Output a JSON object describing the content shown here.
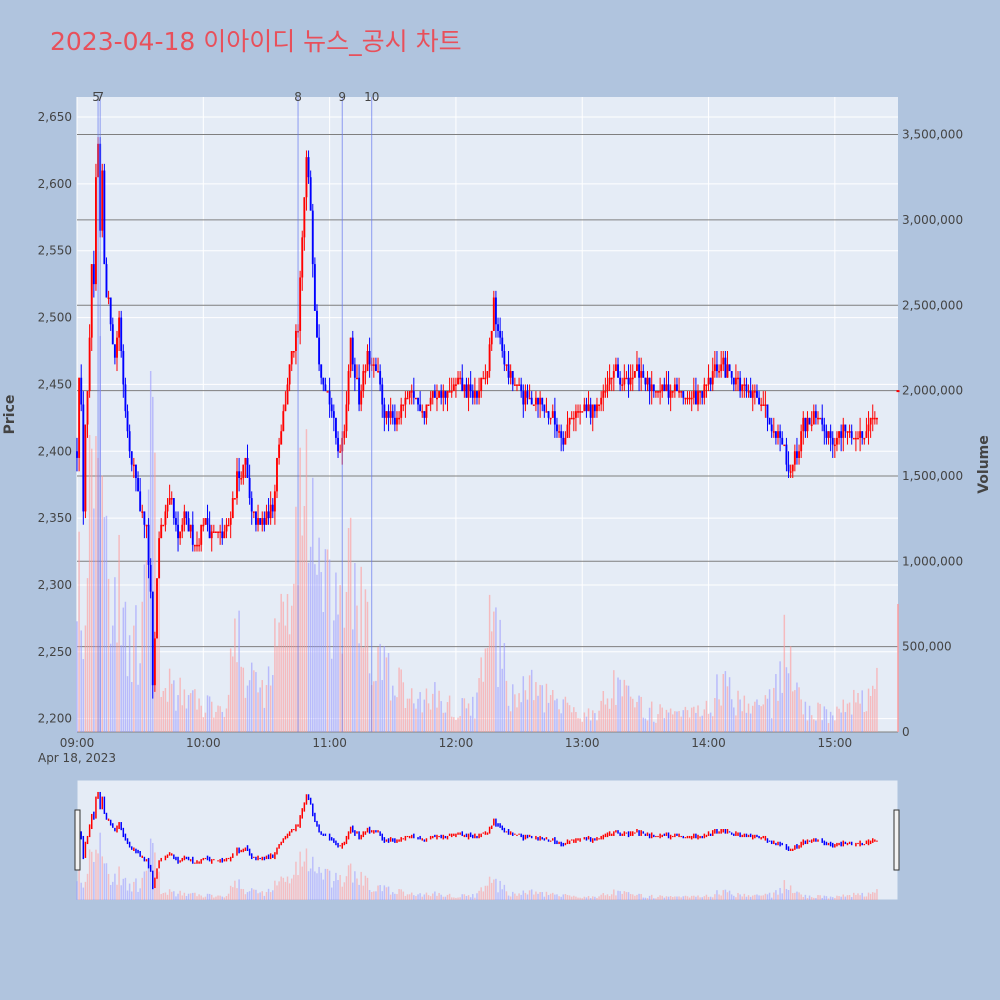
{
  "title": "2023-04-18 이아이디 뉴스_공시 차트",
  "colors": {
    "up": "#ff0000",
    "down": "#0000ff",
    "plot_bg": "#e5ecf6",
    "page_bg": "#b0c4de",
    "title": "#e8505b"
  },
  "chart_data": {
    "type": "candlestick",
    "title": "2023-04-18 이아이디 뉴스_공시 차트",
    "date_label": "Apr 18, 2023",
    "y_label": "Price",
    "y2_label": "Volume",
    "x_ticks": [
      "09:00",
      "10:00",
      "11:00",
      "12:00",
      "13:00",
      "14:00",
      "15:00"
    ],
    "x_range": [
      "09:00",
      "15:30"
    ],
    "y_ticks": [
      2200,
      2250,
      2300,
      2350,
      2400,
      2450,
      2500,
      2550,
      2600,
      2650
    ],
    "y_tick_labels": [
      "2,200",
      "2,250",
      "2,300",
      "2,350",
      "2,400",
      "2,450",
      "2,500",
      "2,550",
      "2,600",
      "2,650"
    ],
    "y_range": [
      2190,
      2665
    ],
    "y2_ticks": [
      0,
      500000,
      1000000,
      1500000,
      2000000,
      2500000,
      3000000,
      3500000
    ],
    "y2_tick_labels": [
      "0",
      "500,000",
      "1,000,000",
      "1,500,000",
      "2,000,000",
      "2,500,000",
      "3,000,000",
      "3,500,000"
    ],
    "y2_range": [
      0,
      3720000
    ],
    "news_markers": [
      {
        "label": "5",
        "time": "09:10"
      },
      {
        "label": "7",
        "time": "09:11"
      },
      {
        "label": "8",
        "time": "10:45"
      },
      {
        "label": "9",
        "time": "11:06"
      },
      {
        "label": "10",
        "time": "11:20"
      }
    ],
    "price_path": [
      [
        "09:00",
        2400
      ],
      [
        "09:01",
        2460
      ],
      [
        "09:02",
        2430
      ],
      [
        "09:03",
        2360
      ],
      [
        "09:04",
        2420
      ],
      [
        "09:05",
        2440
      ],
      [
        "09:06",
        2480
      ],
      [
        "09:07",
        2540
      ],
      [
        "09:08",
        2520
      ],
      [
        "09:09",
        2600
      ],
      [
        "09:10",
        2630
      ],
      [
        "09:11",
        2560
      ],
      [
        "09:12",
        2610
      ],
      [
        "09:13",
        2540
      ],
      [
        "09:14",
        2520
      ],
      [
        "09:16",
        2500
      ],
      [
        "09:18",
        2470
      ],
      [
        "09:20",
        2500
      ],
      [
        "09:22",
        2450
      ],
      [
        "09:24",
        2420
      ],
      [
        "09:26",
        2390
      ],
      [
        "09:28",
        2380
      ],
      [
        "09:30",
        2360
      ],
      [
        "09:33",
        2340
      ],
      [
        "09:35",
        2290
      ],
      [
        "09:36",
        2220
      ],
      [
        "09:37",
        2260
      ],
      [
        "09:39",
        2340
      ],
      [
        "09:42",
        2350
      ],
      [
        "09:45",
        2360
      ],
      [
        "09:48",
        2330
      ],
      [
        "09:51",
        2350
      ],
      [
        "09:54",
        2340
      ],
      [
        "09:57",
        2330
      ],
      [
        "10:00",
        2350
      ],
      [
        "10:04",
        2340
      ],
      [
        "10:08",
        2335
      ],
      [
        "10:12",
        2345
      ],
      [
        "10:16",
        2380
      ],
      [
        "10:20",
        2390
      ],
      [
        "10:23",
        2350
      ],
      [
        "10:27",
        2345
      ],
      [
        "10:30",
        2350
      ],
      [
        "10:33",
        2360
      ],
      [
        "10:36",
        2410
      ],
      [
        "10:39",
        2440
      ],
      [
        "10:42",
        2470
      ],
      [
        "10:45",
        2490
      ],
      [
        "10:47",
        2560
      ],
      [
        "10:49",
        2620
      ],
      [
        "10:51",
        2580
      ],
      [
        "10:53",
        2510
      ],
      [
        "10:55",
        2470
      ],
      [
        "10:58",
        2450
      ],
      [
        "11:01",
        2430
      ],
      [
        "11:04",
        2400
      ],
      [
        "11:07",
        2420
      ],
      [
        "11:10",
        2480
      ],
      [
        "11:14",
        2440
      ],
      [
        "11:18",
        2470
      ],
      [
        "11:22",
        2460
      ],
      [
        "11:26",
        2430
      ],
      [
        "11:30",
        2420
      ],
      [
        "11:35",
        2435
      ],
      [
        "11:40",
        2440
      ],
      [
        "11:45",
        2430
      ],
      [
        "11:50",
        2445
      ],
      [
        "11:55",
        2440
      ],
      [
        "12:00",
        2450
      ],
      [
        "12:05",
        2445
      ],
      [
        "12:10",
        2440
      ],
      [
        "12:15",
        2460
      ],
      [
        "12:18",
        2510
      ],
      [
        "12:20",
        2490
      ],
      [
        "12:24",
        2460
      ],
      [
        "12:28",
        2450
      ],
      [
        "12:33",
        2440
      ],
      [
        "12:38",
        2440
      ],
      [
        "12:43",
        2430
      ],
      [
        "12:48",
        2420
      ],
      [
        "12:52",
        2410
      ],
      [
        "12:55",
        2430
      ],
      [
        "13:00",
        2430
      ],
      [
        "13:05",
        2430
      ],
      [
        "13:10",
        2440
      ],
      [
        "13:15",
        2460
      ],
      [
        "13:20",
        2450
      ],
      [
        "13:25",
        2460
      ],
      [
        "13:30",
        2450
      ],
      [
        "13:35",
        2450
      ],
      [
        "13:40",
        2445
      ],
      [
        "13:45",
        2445
      ],
      [
        "13:50",
        2440
      ],
      [
        "13:55",
        2440
      ],
      [
        "14:00",
        2450
      ],
      [
        "14:05",
        2465
      ],
      [
        "14:10",
        2460
      ],
      [
        "14:15",
        2450
      ],
      [
        "14:20",
        2440
      ],
      [
        "14:25",
        2440
      ],
      [
        "14:30",
        2420
      ],
      [
        "14:35",
        2410
      ],
      [
        "14:38",
        2385
      ],
      [
        "14:42",
        2400
      ],
      [
        "14:45",
        2420
      ],
      [
        "14:50",
        2425
      ],
      [
        "14:55",
        2415
      ],
      [
        "15:00",
        2410
      ],
      [
        "15:05",
        2415
      ],
      [
        "15:10",
        2410
      ],
      [
        "15:15",
        2415
      ],
      [
        "15:18",
        2430
      ],
      [
        "15:20",
        2420
      ]
    ],
    "volume_path": [
      [
        "09:00",
        1500000
      ],
      [
        "09:03",
        800000
      ],
      [
        "09:06",
        1800000
      ],
      [
        "09:09",
        3500000
      ],
      [
        "09:12",
        1600000
      ],
      [
        "09:15",
        1100000
      ],
      [
        "09:20",
        900000
      ],
      [
        "09:25",
        700000
      ],
      [
        "09:30",
        500000
      ],
      [
        "09:36",
        1950000
      ],
      [
        "09:40",
        400000
      ],
      [
        "09:50",
        250000
      ],
      [
        "10:00",
        180000
      ],
      [
        "10:10",
        200000
      ],
      [
        "10:15",
        650000
      ],
      [
        "10:20",
        400000
      ],
      [
        "10:30",
        300000
      ],
      [
        "10:36",
        700000
      ],
      [
        "10:42",
        1000000
      ],
      [
        "10:47",
        1600000
      ],
      [
        "10:51",
        1700000
      ],
      [
        "10:55",
        1000000
      ],
      [
        "11:00",
        800000
      ],
      [
        "11:05",
        700000
      ],
      [
        "11:10",
        1100000
      ],
      [
        "11:20",
        500000
      ],
      [
        "11:30",
        350000
      ],
      [
        "11:40",
        200000
      ],
      [
        "11:50",
        250000
      ],
      [
        "12:00",
        150000
      ],
      [
        "12:10",
        200000
      ],
      [
        "12:18",
        800000
      ],
      [
        "12:25",
        250000
      ],
      [
        "12:35",
        300000
      ],
      [
        "12:45",
        200000
      ],
      [
        "12:55",
        150000
      ],
      [
        "13:05",
        120000
      ],
      [
        "13:15",
        280000
      ],
      [
        "13:30",
        150000
      ],
      [
        "13:45",
        100000
      ],
      [
        "14:00",
        150000
      ],
      [
        "14:05",
        300000
      ],
      [
        "14:20",
        180000
      ],
      [
        "14:30",
        200000
      ],
      [
        "14:36",
        560000
      ],
      [
        "14:45",
        150000
      ],
      [
        "15:00",
        120000
      ],
      [
        "15:10",
        200000
      ],
      [
        "15:18",
        240000
      ],
      [
        "15:30",
        750000
      ]
    ]
  }
}
